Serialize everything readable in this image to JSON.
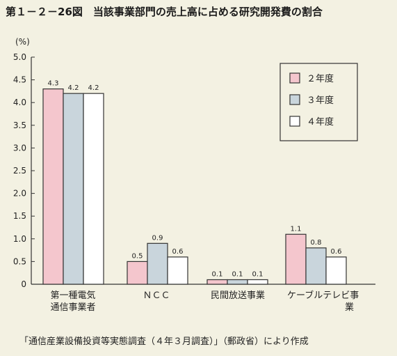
{
  "title": "第１－２－26図　当該事業部門の売上高に占める研究開発費の割合",
  "source": "「通信産業設備投資等実態調査（４年３月調査）」（郵政省）により作成",
  "chart_data": {
    "type": "bar",
    "ylabel": "(%)",
    "ylim": [
      0,
      5.0
    ],
    "yticks": [
      "0",
      "0.5",
      "1.0",
      "1.5",
      "2.0",
      "2.5",
      "3.0",
      "3.5",
      "4.0",
      "4.5",
      "5.0"
    ],
    "categories": [
      [
        "第一種電気",
        "通信事業者"
      ],
      [
        "ＮＣＣ"
      ],
      [
        "民間放送事業"
      ],
      [
        "ケーブルテレビ事",
        "業"
      ]
    ],
    "series": [
      {
        "name": "２年度",
        "color": "#f4c6cd",
        "values": [
          4.3,
          0.5,
          0.1,
          1.1
        ],
        "labels": [
          "4.3",
          "0.5",
          "0.1",
          "1.1"
        ]
      },
      {
        "name": "３年度",
        "color": "#c9d5dc",
        "values": [
          4.2,
          0.9,
          0.1,
          0.8
        ],
        "labels": [
          "4.2",
          "0.9",
          "0.1",
          "0.8"
        ]
      },
      {
        "name": "４年度",
        "color": "#ffffff",
        "values": [
          4.2,
          0.6,
          0.1,
          0.6
        ],
        "labels": [
          "4.2",
          "0.6",
          "0.1",
          "0.6"
        ]
      }
    ],
    "legend": "top-right",
    "grid": false
  }
}
